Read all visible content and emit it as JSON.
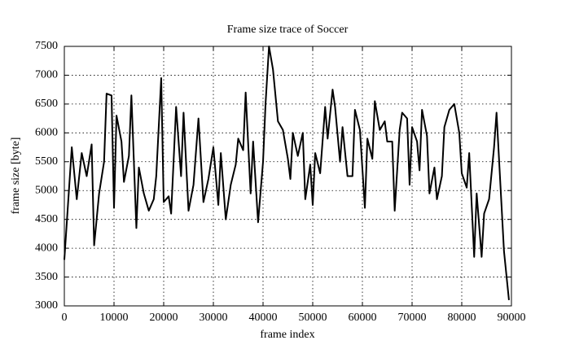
{
  "chart_data": {
    "type": "line",
    "title": "Frame size trace of Soccer",
    "x_label": "frame index",
    "y_label": "frame size [byte]",
    "color": "#000000",
    "grid": true,
    "xlim": [
      0,
      90000
    ],
    "xticks": [
      0,
      10000,
      20000,
      30000,
      40000,
      50000,
      60000,
      70000,
      80000,
      90000
    ],
    "ylim": [
      3000,
      7500
    ],
    "yticks": [
      3000,
      3500,
      4000,
      4500,
      5000,
      5500,
      6000,
      6500,
      7000,
      7500
    ],
    "x": [
      0,
      1500,
      2500,
      3500,
      4500,
      5500,
      6000,
      7000,
      8000,
      8500,
      9500,
      10000,
      10500,
      11500,
      12000,
      13000,
      13500,
      14500,
      15000,
      16000,
      17000,
      18000,
      18500,
      19500,
      20000,
      21000,
      21500,
      22500,
      23500,
      24000,
      25000,
      26000,
      27000,
      28000,
      29000,
      30000,
      31000,
      31500,
      32500,
      33500,
      34500,
      35000,
      36000,
      36500,
      37500,
      38000,
      39000,
      40000,
      40500,
      41200,
      42000,
      43000,
      44000,
      45000,
      45500,
      46000,
      47000,
      48000,
      48500,
      49500,
      50000,
      50500,
      51500,
      52500,
      53000,
      54000,
      54500,
      55500,
      56000,
      57000,
      58000,
      58500,
      59500,
      60500,
      61000,
      62000,
      62500,
      63500,
      64500,
      65000,
      66000,
      66500,
      67500,
      68000,
      69000,
      69500,
      70000,
      71000,
      71500,
      72000,
      73000,
      73500,
      74500,
      75000,
      76000,
      76500,
      77500,
      78500,
      79500,
      80000,
      81000,
      81500,
      82500,
      83000,
      84000,
      84500,
      85500,
      86500,
      87000,
      88500,
      89500
    ],
    "values": [
      3800,
      5750,
      4850,
      5650,
      5250,
      5800,
      4050,
      4950,
      5500,
      6680,
      6650,
      4700,
      6300,
      5850,
      5150,
      5600,
      6650,
      4350,
      5400,
      4950,
      4650,
      4850,
      5250,
      6950,
      4800,
      4900,
      4600,
      6450,
      5250,
      6350,
      4650,
      5100,
      6250,
      4800,
      5200,
      5750,
      4750,
      5650,
      4500,
      5100,
      5450,
      5900,
      5700,
      6700,
      4950,
      5850,
      4450,
      5500,
      6500,
      7500,
      7100,
      6200,
      6050,
      5550,
      5200,
      6000,
      5600,
      6000,
      4850,
      5450,
      4750,
      5650,
      5300,
      6450,
      5900,
      6750,
      6450,
      5500,
      6100,
      5250,
      5250,
      6400,
      6050,
      4700,
      5900,
      5550,
      6550,
      6050,
      6200,
      5850,
      5850,
      4650,
      6050,
      6350,
      6250,
      5100,
      6100,
      5850,
      5350,
      6400,
      5950,
      4950,
      5400,
      4850,
      5250,
      6100,
      6400,
      6500,
      6000,
      5300,
      5050,
      5650,
      3850,
      4950,
      3850,
      4600,
      4850,
      5750,
      6350,
      3950,
      3100
    ]
  }
}
